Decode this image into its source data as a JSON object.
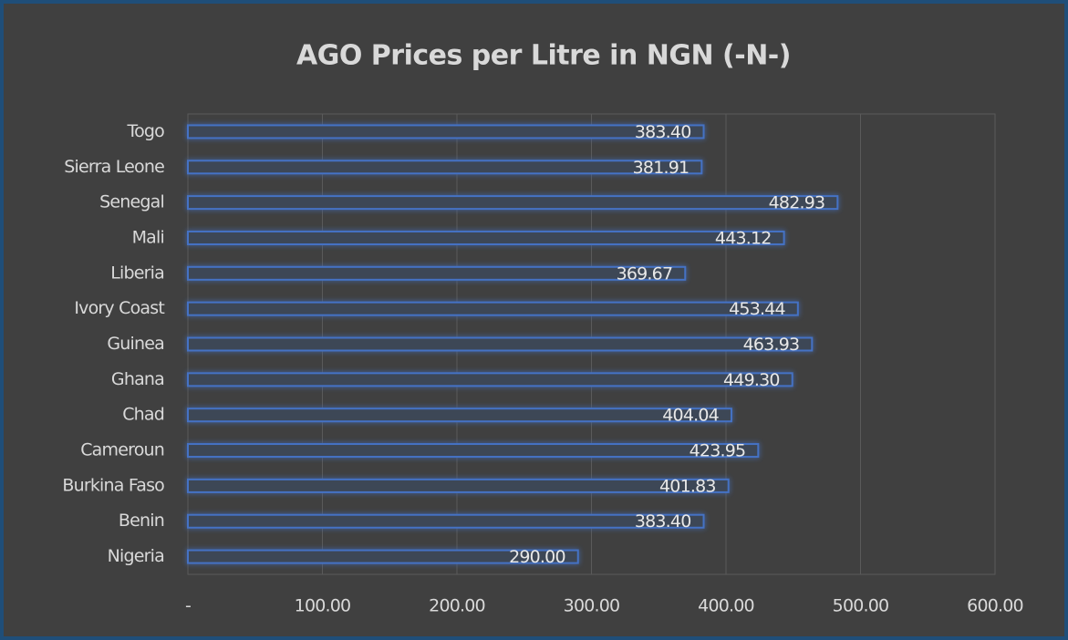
{
  "chart_data": {
    "type": "bar",
    "orientation": "horizontal",
    "title": "AGO Prices per Litre in NGN (-N-)",
    "categories": [
      "Togo",
      "Sierra Leone",
      "Senegal",
      "Mali",
      "Liberia",
      "Ivory Coast",
      "Guinea",
      "Ghana",
      "Chad",
      "Cameroun",
      "Burkina Faso",
      "Benin",
      "Nigeria"
    ],
    "values": [
      383.4,
      381.91,
      482.93,
      443.12,
      369.67,
      453.44,
      463.93,
      449.3,
      404.04,
      423.95,
      401.83,
      383.4,
      290
    ],
    "value_labels": [
      "383.40",
      "381.91",
      "482.93",
      "443.12",
      "369.67",
      "453.44",
      "463.93",
      "449.30",
      "404.04",
      "423.95",
      "401.83",
      "383.40",
      "290.00"
    ],
    "color": "#4472c4",
    "xlim": [
      0,
      600
    ],
    "xticks": [
      {
        "value": 0,
        "label": "-"
      },
      {
        "value": 100,
        "label": "100.00"
      },
      {
        "value": 200,
        "label": "200.00"
      },
      {
        "value": 300,
        "label": "300.00"
      },
      {
        "value": 400,
        "label": "400.00"
      },
      {
        "value": 500,
        "label": "500.00"
      },
      {
        "value": 600,
        "label": "600.00"
      }
    ],
    "grid": true
  }
}
